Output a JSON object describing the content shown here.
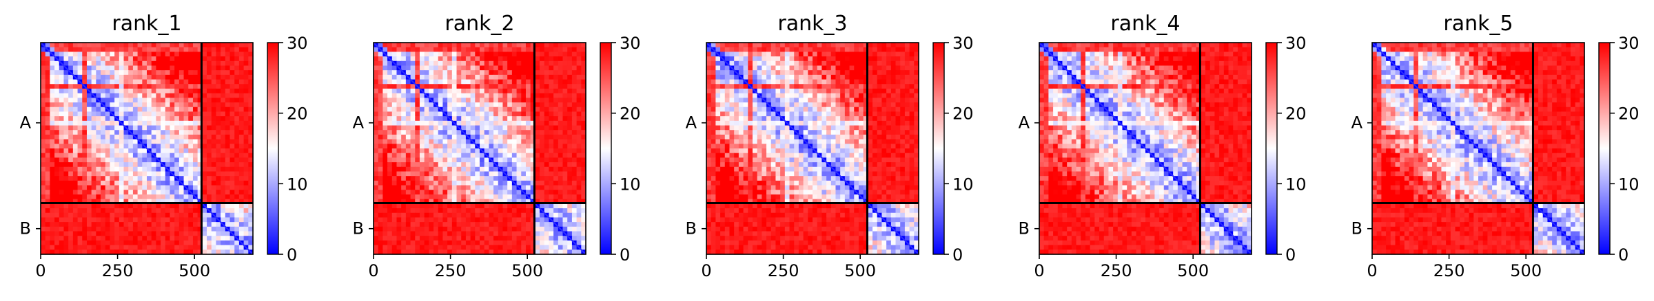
{
  "chart_data": [
    {
      "type": "heatmap",
      "title": "rank_1",
      "xticks": [
        0,
        250,
        500
      ],
      "ytick_labels": [
        "A",
        "B"
      ],
      "chain_boundaries": [
        0,
        523,
        690
      ],
      "colorbar": {
        "ticks": [
          0,
          10,
          20,
          30
        ],
        "range": [
          0,
          30
        ],
        "colormap": "bwr"
      }
    },
    {
      "type": "heatmap",
      "title": "rank_2",
      "xticks": [
        0,
        250,
        500
      ],
      "ytick_labels": [
        "A",
        "B"
      ],
      "chain_boundaries": [
        0,
        523,
        690
      ],
      "colorbar": {
        "ticks": [
          0,
          10,
          20,
          30
        ],
        "range": [
          0,
          30
        ],
        "colormap": "bwr"
      }
    },
    {
      "type": "heatmap",
      "title": "rank_3",
      "xticks": [
        0,
        250,
        500
      ],
      "ytick_labels": [
        "A",
        "B"
      ],
      "chain_boundaries": [
        0,
        523,
        690
      ],
      "colorbar": {
        "ticks": [
          0,
          10,
          20,
          30
        ],
        "range": [
          0,
          30
        ],
        "colormap": "bwr"
      }
    },
    {
      "type": "heatmap",
      "title": "rank_4",
      "xticks": [
        0,
        250,
        500
      ],
      "ytick_labels": [
        "A",
        "B"
      ],
      "chain_boundaries": [
        0,
        523,
        690
      ],
      "colorbar": {
        "ticks": [
          0,
          10,
          20,
          30
        ],
        "range": [
          0,
          30
        ],
        "colormap": "bwr"
      }
    },
    {
      "type": "heatmap",
      "title": "rank_5",
      "xticks": [
        0,
        250,
        500
      ],
      "ytick_labels": [
        "A",
        "B"
      ],
      "chain_boundaries": [
        0,
        523,
        690
      ],
      "colorbar": {
        "ticks": [
          0,
          10,
          20,
          30
        ],
        "range": [
          0,
          30
        ],
        "colormap": "bwr"
      }
    }
  ]
}
